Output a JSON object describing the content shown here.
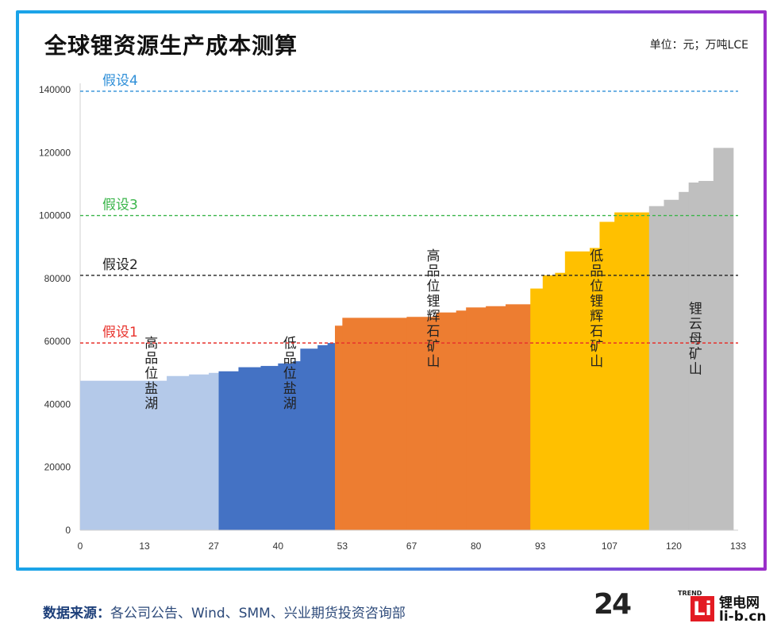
{
  "header": {
    "title": "全球锂资源生产成本测算",
    "unit": "单位：元；万吨LCE"
  },
  "footer": {
    "source_label": "数据来源：",
    "source_text": "各公司公告、Wind、SMM、兴业期货投资咨询部"
  },
  "logo": {
    "number": "24",
    "trend": "TREND",
    "mark": "Li",
    "name": "锂电网",
    "domain": "li-b.cn"
  },
  "chart_data": {
    "type": "bar",
    "xlim": [
      0,
      133
    ],
    "ylim": [
      0,
      140000
    ],
    "x_ticks": [
      0,
      13,
      27,
      40,
      53,
      67,
      80,
      93,
      107,
      120,
      133
    ],
    "y_ticks": [
      0,
      20000,
      40000,
      60000,
      80000,
      100000,
      120000,
      140000
    ],
    "grid": false,
    "series": [
      {
        "name": "高品位盐湖",
        "color": "#b4c9e9",
        "bars": [
          [
            0,
            13,
            47500
          ],
          [
            13,
            17.5,
            47500
          ],
          [
            17.5,
            22,
            49000
          ],
          [
            22,
            26,
            49500
          ],
          [
            26,
            28,
            50000
          ]
        ]
      },
      {
        "name": "低品位盐湖",
        "color": "#4472c4",
        "bars": [
          [
            28,
            32,
            50500
          ],
          [
            32,
            36.5,
            51800
          ],
          [
            36.5,
            40,
            52200
          ],
          [
            40,
            43,
            53000
          ],
          [
            43,
            44.5,
            53700
          ],
          [
            44.5,
            48,
            57700
          ],
          [
            48,
            50,
            58800
          ],
          [
            50,
            51.5,
            59500
          ]
        ]
      },
      {
        "name": "高品位锂辉石矿山",
        "color": "#ed7d31",
        "bars": [
          [
            51.5,
            53,
            65000
          ],
          [
            53,
            66,
            67500
          ],
          [
            66,
            72,
            67800
          ],
          [
            72,
            76,
            69200
          ],
          [
            76,
            78,
            69800
          ],
          [
            78,
            82,
            70800
          ],
          [
            82,
            86,
            71200
          ],
          [
            86,
            91,
            71800
          ]
        ]
      },
      {
        "name": "低品位锂辉石矿山",
        "color": "#ffc000",
        "bars": [
          [
            91,
            93.5,
            76800
          ],
          [
            93.5,
            96,
            81000
          ],
          [
            96,
            98,
            81800
          ],
          [
            98,
            103,
            88600
          ],
          [
            103,
            105,
            89700
          ],
          [
            105,
            108,
            98000
          ],
          [
            108,
            115,
            101000
          ]
        ]
      },
      {
        "name": "锂云母矿山",
        "color": "#bfbfbf",
        "bars": [
          [
            115,
            118,
            103000
          ],
          [
            118,
            121,
            105000
          ],
          [
            121,
            123,
            107500
          ],
          [
            123,
            125,
            110500
          ],
          [
            125,
            128,
            111000
          ],
          [
            128,
            132,
            121500
          ]
        ]
      }
    ],
    "series_label_values": [
      {
        "x": 14,
        "y": 22000
      },
      {
        "x": 42,
        "y": 22000
      },
      {
        "x": 71,
        "y": 26000
      },
      {
        "x": 104,
        "y": 26000
      },
      {
        "x": 124,
        "y": 33000
      }
    ],
    "reference_lines": [
      {
        "label": "假设1",
        "value": 59500,
        "color": "#e8322c"
      },
      {
        "label": "假设2",
        "value": 81000,
        "color": "#222222"
      },
      {
        "label": "假设3",
        "value": 100000,
        "color": "#3ab54a"
      },
      {
        "label": "假设4",
        "value": 139500,
        "color": "#2f8fd8"
      }
    ]
  }
}
